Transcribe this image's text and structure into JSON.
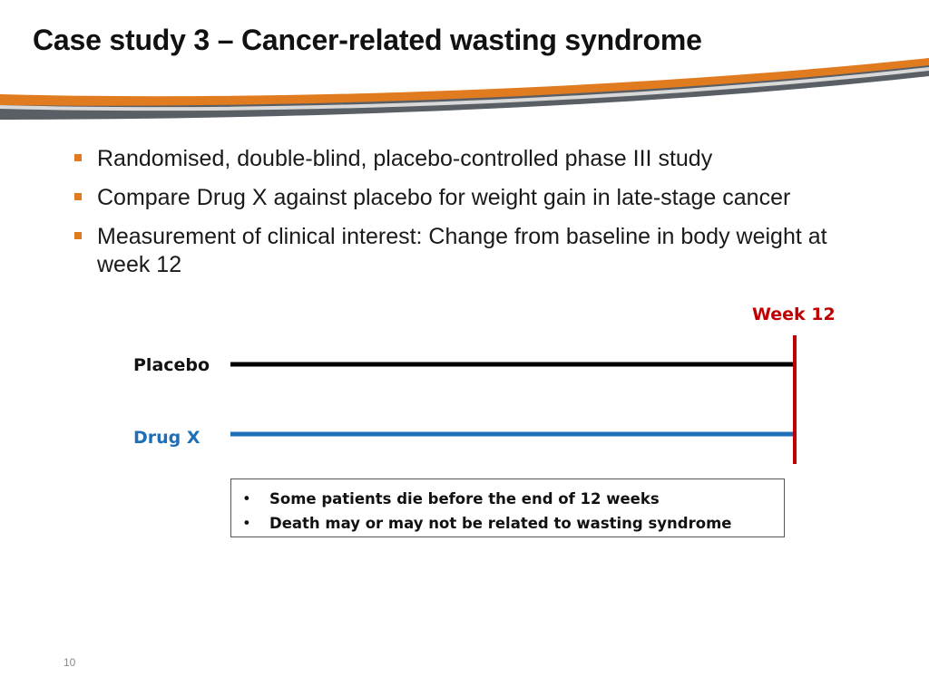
{
  "slide": {
    "title": "Case study 3 – Cancer-related wasting syndrome",
    "page_number": "10"
  },
  "bullets": [
    "Randomised, double-blind, placebo-controlled phase III study",
    "Compare Drug X against placebo for weight gain in late-stage cancer",
    "Measurement of clinical interest: Change from baseline in body weight at week 12"
  ],
  "timeline": {
    "endpoint_label": "Week 12",
    "arms": [
      {
        "label": "Placebo",
        "color": "#000000"
      },
      {
        "label": "Drug X",
        "color": "#1f6fb8"
      }
    ],
    "endpoint_color": "#c00000"
  },
  "callout": {
    "items": [
      "Some patients die before the end of 12 weeks",
      "Death may or may not be related to wasting syndrome"
    ]
  },
  "colors": {
    "accent_orange": "#e07b1f",
    "swoosh_gray": "#5a5f66"
  }
}
